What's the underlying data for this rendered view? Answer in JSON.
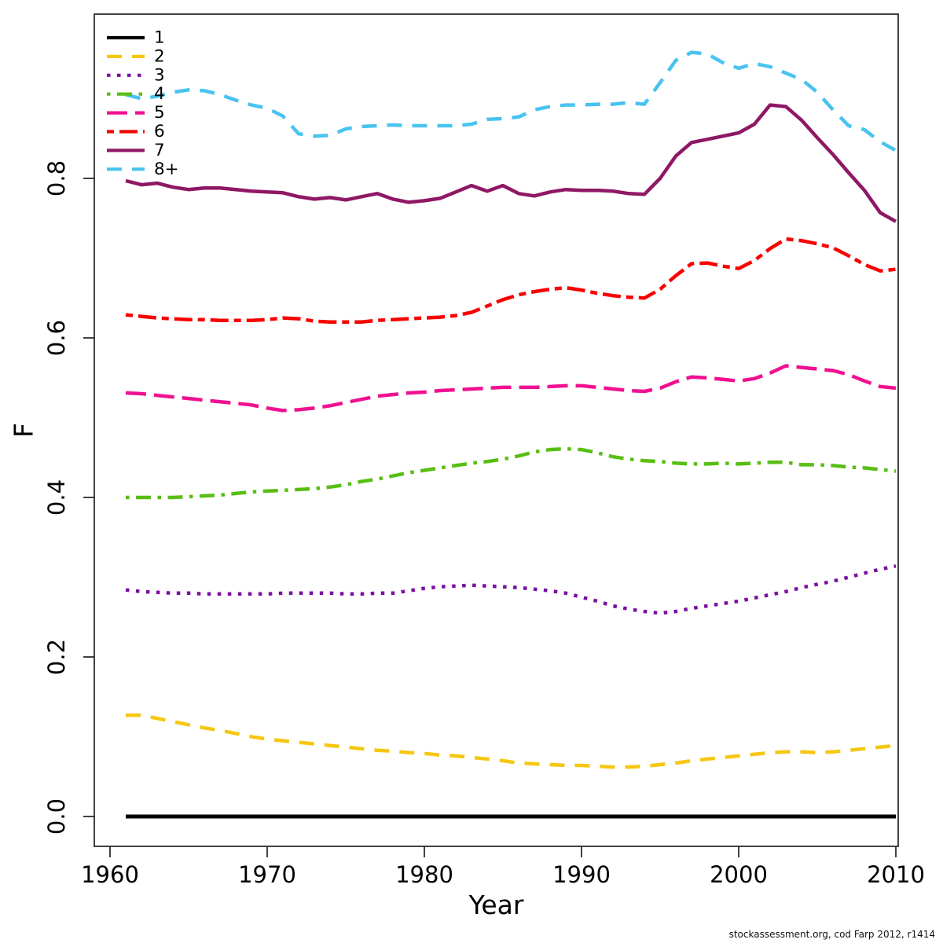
{
  "watermark": "stockassessment.org, cod Farp 2012, r1414",
  "chart_data": {
    "type": "line",
    "title": "",
    "xlabel": "Year",
    "ylabel": "F",
    "grid": false,
    "legend_position": "top-left",
    "xlim": [
      1958.9,
      2012.2
    ],
    "ylim": [
      -0.035,
      1.005
    ],
    "x_ticks": {
      "values": [
        1960,
        1970,
        1980,
        1990,
        2000,
        2010
      ],
      "labels": [
        "1960",
        "1970",
        "1980",
        "1990",
        "2000",
        "2010"
      ]
    },
    "y_ticks": {
      "values": [
        0.0,
        0.2,
        0.4,
        0.6,
        0.8
      ],
      "labels": [
        "0.0",
        "0.2",
        "0.4",
        "0.6",
        "0.8"
      ]
    },
    "x": [
      1961,
      1962,
      1963,
      1964,
      1965,
      1966,
      1967,
      1968,
      1969,
      1970,
      1971,
      1972,
      1973,
      1974,
      1975,
      1976,
      1977,
      1978,
      1979,
      1980,
      1981,
      1982,
      1983,
      1984,
      1985,
      1986,
      1987,
      1988,
      1989,
      1990,
      1991,
      1992,
      1993,
      1994,
      1995,
      1996,
      1997,
      1998,
      1999,
      2000,
      2001,
      2002,
      2003,
      2004,
      2005,
      2006,
      2007,
      2008,
      2009,
      2010
    ],
    "series": [
      {
        "name": "1",
        "color": "#000000",
        "linestyle": "solid",
        "width": 5,
        "values": [
          0,
          0,
          0,
          0,
          0,
          0,
          0,
          0,
          0,
          0,
          0,
          0,
          0,
          0,
          0,
          0,
          0,
          0,
          0,
          0,
          0,
          0,
          0,
          0,
          0,
          0,
          0,
          0,
          0,
          0,
          0,
          0,
          0,
          0,
          0,
          0,
          0,
          0,
          0,
          0,
          0,
          0,
          0,
          0,
          0,
          0,
          0,
          0,
          0,
          0
        ]
      },
      {
        "name": "2",
        "color": "#F5C710",
        "linestyle": "dashed",
        "width": 4.5,
        "values": [
          0.127,
          0.127,
          0.123,
          0.119,
          0.115,
          0.111,
          0.108,
          0.104,
          0.1,
          0.097,
          0.095,
          0.093,
          0.091,
          0.089,
          0.087,
          0.085,
          0.083,
          0.082,
          0.08,
          0.079,
          0.077,
          0.076,
          0.074,
          0.072,
          0.07,
          0.067,
          0.066,
          0.065,
          0.064,
          0.064,
          0.063,
          0.062,
          0.062,
          0.063,
          0.065,
          0.067,
          0.07,
          0.072,
          0.074,
          0.076,
          0.078,
          0.08,
          0.081,
          0.081,
          0.08,
          0.081,
          0.083,
          0.085,
          0.087,
          0.089
        ]
      },
      {
        "name": "3",
        "color": "#7A0FA3",
        "linestyle": "dotted",
        "width": 4.5,
        "values": [
          0.284,
          0.282,
          0.281,
          0.28,
          0.28,
          0.279,
          0.279,
          0.279,
          0.279,
          0.279,
          0.28,
          0.28,
          0.28,
          0.28,
          0.279,
          0.279,
          0.28,
          0.28,
          0.283,
          0.286,
          0.288,
          0.289,
          0.29,
          0.289,
          0.288,
          0.287,
          0.285,
          0.283,
          0.28,
          0.275,
          0.27,
          0.264,
          0.26,
          0.257,
          0.255,
          0.257,
          0.261,
          0.264,
          0.267,
          0.27,
          0.274,
          0.278,
          0.282,
          0.287,
          0.291,
          0.295,
          0.3,
          0.305,
          0.31,
          0.314
        ]
      },
      {
        "name": "4",
        "color": "#58BE13",
        "linestyle": "dotdash",
        "width": 4.5,
        "values": [
          0.4,
          0.4,
          0.4,
          0.4,
          0.401,
          0.402,
          0.403,
          0.405,
          0.407,
          0.408,
          0.409,
          0.41,
          0.411,
          0.413,
          0.416,
          0.42,
          0.423,
          0.427,
          0.431,
          0.434,
          0.437,
          0.44,
          0.443,
          0.445,
          0.448,
          0.452,
          0.457,
          0.46,
          0.461,
          0.46,
          0.456,
          0.451,
          0.448,
          0.446,
          0.445,
          0.443,
          0.442,
          0.442,
          0.443,
          0.442,
          0.443,
          0.444,
          0.444,
          0.441,
          0.441,
          0.44,
          0.438,
          0.437,
          0.435,
          0.433
        ]
      },
      {
        "name": "5",
        "color": "#F01090",
        "linestyle": "longdash",
        "width": 4.5,
        "values": [
          0.531,
          0.53,
          0.528,
          0.526,
          0.524,
          0.522,
          0.52,
          0.518,
          0.516,
          0.512,
          0.509,
          0.51,
          0.512,
          0.515,
          0.519,
          0.523,
          0.527,
          0.529,
          0.531,
          0.532,
          0.534,
          0.535,
          0.536,
          0.537,
          0.538,
          0.538,
          0.538,
          0.539,
          0.54,
          0.54,
          0.538,
          0.536,
          0.534,
          0.533,
          0.537,
          0.545,
          0.551,
          0.55,
          0.548,
          0.546,
          0.549,
          0.556,
          0.565,
          0.563,
          0.561,
          0.559,
          0.554,
          0.546,
          0.539,
          0.537
        ]
      },
      {
        "name": "6",
        "color": "#F80000",
        "linestyle": "twodash",
        "width": 4.5,
        "values": [
          0.629,
          0.627,
          0.625,
          0.624,
          0.623,
          0.623,
          0.622,
          0.622,
          0.622,
          0.623,
          0.625,
          0.624,
          0.621,
          0.62,
          0.62,
          0.62,
          0.622,
          0.623,
          0.624,
          0.625,
          0.626,
          0.628,
          0.632,
          0.64,
          0.648,
          0.654,
          0.658,
          0.661,
          0.663,
          0.66,
          0.656,
          0.653,
          0.651,
          0.65,
          0.661,
          0.678,
          0.693,
          0.694,
          0.69,
          0.687,
          0.697,
          0.712,
          0.724,
          0.722,
          0.718,
          0.713,
          0.703,
          0.692,
          0.684,
          0.686
        ]
      },
      {
        "name": "7",
        "color": "#8E1865",
        "linestyle": "solid",
        "width": 4.5,
        "values": [
          0.797,
          0.792,
          0.794,
          0.789,
          0.786,
          0.788,
          0.788,
          0.786,
          0.784,
          0.783,
          0.782,
          0.777,
          0.774,
          0.776,
          0.773,
          0.777,
          0.781,
          0.774,
          0.77,
          0.772,
          0.775,
          0.783,
          0.791,
          0.784,
          0.791,
          0.781,
          0.778,
          0.783,
          0.786,
          0.785,
          0.785,
          0.784,
          0.781,
          0.78,
          0.8,
          0.828,
          0.845,
          0.849,
          0.853,
          0.857,
          0.868,
          0.892,
          0.89,
          0.873,
          0.851,
          0.83,
          0.807,
          0.785,
          0.757,
          0.746
        ]
      },
      {
        "name": "8+",
        "color": "#49C3F0",
        "linestyle": "dashed",
        "width": 4.5,
        "values": [
          0.905,
          0.9,
          0.903,
          0.908,
          0.911,
          0.91,
          0.905,
          0.898,
          0.892,
          0.888,
          0.878,
          0.856,
          0.853,
          0.854,
          0.862,
          0.865,
          0.866,
          0.867,
          0.866,
          0.866,
          0.866,
          0.866,
          0.868,
          0.874,
          0.875,
          0.877,
          0.886,
          0.89,
          0.892,
          0.892,
          0.893,
          0.893,
          0.895,
          0.893,
          0.92,
          0.948,
          0.958,
          0.956,
          0.945,
          0.938,
          0.944,
          0.94,
          0.932,
          0.924,
          0.908,
          0.886,
          0.866,
          0.861,
          0.846,
          0.835
        ]
      }
    ]
  }
}
